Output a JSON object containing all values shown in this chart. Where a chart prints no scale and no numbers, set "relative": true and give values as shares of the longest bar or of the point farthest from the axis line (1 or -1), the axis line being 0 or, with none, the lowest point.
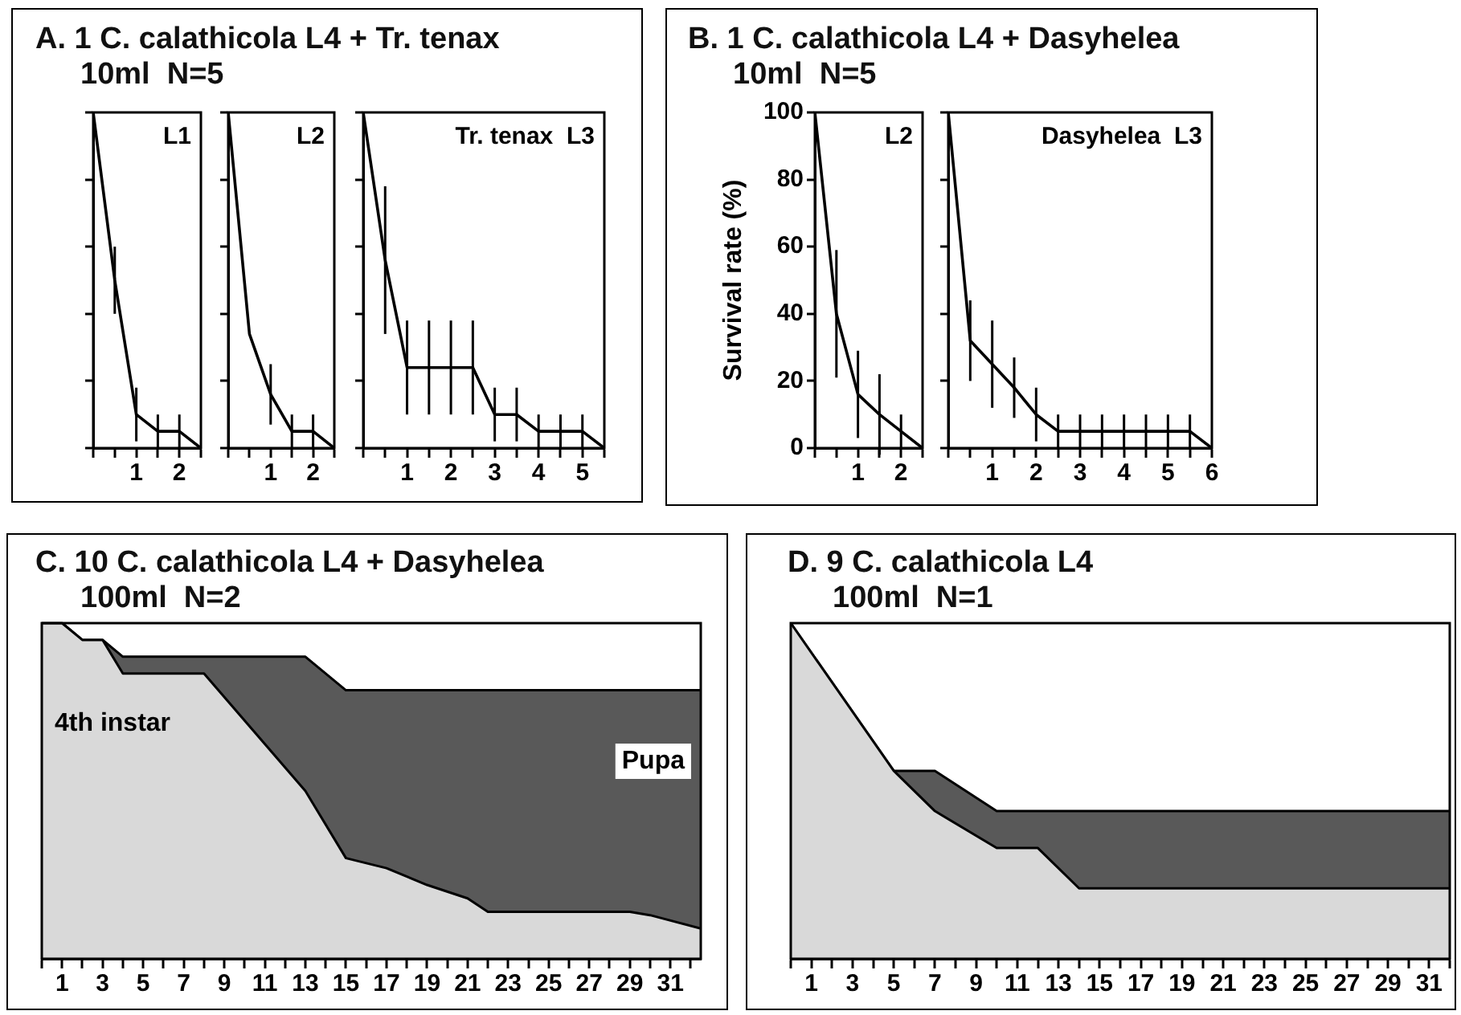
{
  "chart_data": [
    {
      "type": "line",
      "title": "A. 1 C. calathicola L4 + Tr. tenax",
      "subtitle": "10ml  N=5",
      "annotations": [
        "L1"
      ],
      "x": [
        0,
        0.5,
        1,
        1.5,
        2,
        2.5
      ],
      "values": [
        100,
        50,
        10,
        5,
        5,
        0
      ],
      "errors": [
        null,
        10,
        8,
        5,
        5,
        null
      ],
      "color": "#000000",
      "xlim": [
        0,
        2.5
      ],
      "xticks": [
        {
          "value": 0,
          "label": null
        },
        {
          "value": 0.5,
          "label": null
        },
        1,
        {
          "value": 1.5,
          "label": null
        },
        2,
        {
          "value": 2.5,
          "label": null
        }
      ],
      "ylim": [
        0,
        100
      ],
      "yticks": [
        {
          "value": 0,
          "label": null
        },
        {
          "value": 20,
          "label": null
        },
        {
          "value": 40,
          "label": null
        },
        {
          "value": 60,
          "label": null
        },
        {
          "value": 80,
          "label": null
        },
        {
          "value": 100,
          "label": null
        }
      ],
      "tick_labels": "x",
      "marker": "none"
    },
    {
      "type": "line",
      "annotations": [
        "L2"
      ],
      "x": [
        0,
        0.5,
        1,
        1.5,
        2,
        2.5
      ],
      "values": [
        100,
        34,
        16,
        5,
        5,
        0
      ],
      "errors": [
        null,
        null,
        9,
        5,
        5,
        null
      ],
      "color": "#000000",
      "xlim": [
        0,
        2.5
      ],
      "xticks": [
        {
          "value": 0,
          "label": null
        },
        {
          "value": 0.5,
          "label": null
        },
        1,
        {
          "value": 1.5,
          "label": null
        },
        2,
        {
          "value": 2.5,
          "label": null
        }
      ],
      "ylim": [
        0,
        100
      ],
      "yticks": [
        {
          "value": 0,
          "label": null
        },
        {
          "value": 20,
          "label": null
        },
        {
          "value": 40,
          "label": null
        },
        {
          "value": 60,
          "label": null
        },
        {
          "value": 80,
          "label": null
        },
        {
          "value": 100,
          "label": null
        }
      ],
      "tick_labels": "x",
      "marker": "none"
    },
    {
      "type": "line",
      "annotations": [
        "Tr. tenax  L3"
      ],
      "x": [
        0,
        0.5,
        1,
        1.5,
        2,
        2.5,
        3,
        3.5,
        4,
        4.5,
        5,
        5.5
      ],
      "values": [
        100,
        56,
        24,
        24,
        24,
        24,
        10,
        10,
        5,
        5,
        5,
        0
      ],
      "errors": [
        null,
        22,
        14,
        14,
        14,
        14,
        8,
        8,
        5,
        5,
        5,
        null
      ],
      "color": "#000000",
      "xlim": [
        0,
        5.5
      ],
      "xticks": [
        {
          "value": 0,
          "label": null
        },
        {
          "value": 0.5,
          "label": null
        },
        1,
        {
          "value": 1.5,
          "label": null
        },
        2,
        {
          "value": 2.5,
          "label": null
        },
        3,
        {
          "value": 3.5,
          "label": null
        },
        4,
        {
          "value": 4.5,
          "label": null
        },
        5,
        {
          "value": 5.5,
          "label": null
        }
      ],
      "ylim": [
        0,
        100
      ],
      "yticks": [
        {
          "value": 0,
          "label": null
        },
        {
          "value": 20,
          "label": null
        },
        {
          "value": 40,
          "label": null
        },
        {
          "value": 60,
          "label": null
        },
        {
          "value": 80,
          "label": null
        },
        {
          "value": 100,
          "label": null
        }
      ],
      "tick_labels": "x",
      "marker": "none"
    },
    {
      "type": "line",
      "title": "B. 1 C. calathicola L4 + Dasyhelea",
      "subtitle": "10ml  N=5",
      "ylabel": "Survival rate (%)",
      "annotations": [
        "L2"
      ],
      "x": [
        0,
        0.5,
        1,
        1.5,
        2,
        2.5
      ],
      "values": [
        100,
        40,
        16,
        10,
        5,
        0
      ],
      "errors": [
        null,
        19,
        13,
        12,
        5,
        null
      ],
      "color": "#000000",
      "xlim": [
        0,
        2.5
      ],
      "xticks": [
        {
          "value": 0,
          "label": null
        },
        {
          "value": 0.5,
          "label": null
        },
        1,
        {
          "value": 1.5,
          "label": null
        },
        2,
        {
          "value": 2.5,
          "label": null
        }
      ],
      "ylim": [
        0,
        100
      ],
      "yticks": [
        0,
        20,
        40,
        60,
        80,
        100
      ],
      "marker": "none"
    },
    {
      "type": "line",
      "annotations": [
        "Dasyhelea  L3"
      ],
      "x": [
        0,
        0.5,
        1,
        1.5,
        2,
        2.5,
        3,
        3.5,
        4,
        4.5,
        5,
        5.5,
        6
      ],
      "values": [
        100,
        32,
        25,
        18,
        10,
        5,
        5,
        5,
        5,
        5,
        5,
        5,
        0
      ],
      "errors": [
        null,
        12,
        13,
        9,
        8,
        5,
        5,
        5,
        5,
        5,
        5,
        5,
        null
      ],
      "color": "#000000",
      "xlim": [
        0,
        6
      ],
      "xticks": [
        {
          "value": 0,
          "label": null
        },
        {
          "value": 0.5,
          "label": null
        },
        1,
        {
          "value": 1.5,
          "label": null
        },
        2,
        {
          "value": 2.5,
          "label": null
        },
        3,
        {
          "value": 3.5,
          "label": null
        },
        4,
        {
          "value": 4.5,
          "label": null
        },
        5,
        {
          "value": 5.5,
          "label": null
        },
        6
      ],
      "ylim": [
        0,
        100
      ],
      "yticks": [
        {
          "value": 0,
          "label": null
        },
        {
          "value": 20,
          "label": null
        },
        {
          "value": 40,
          "label": null
        },
        {
          "value": 60,
          "label": null
        },
        {
          "value": 80,
          "label": null
        },
        {
          "value": 100,
          "label": null
        }
      ],
      "tick_labels": "x",
      "marker": "none"
    },
    {
      "type": "area",
      "title": "C. 10 C. calathicola L4 + Dasyhelea",
      "subtitle": "100ml  N=2",
      "relative": true,
      "stacked": true,
      "x": [
        0,
        1,
        2,
        3,
        4,
        8,
        9,
        11,
        13,
        15,
        17,
        19,
        21,
        22,
        29,
        30,
        32.5
      ],
      "series": [
        {
          "name": "4th instar",
          "color": "#d9d9d9",
          "values": [
            1,
            1,
            0.95,
            0.95,
            0.85,
            0.85,
            0.78,
            0.64,
            0.5,
            0.3,
            0.27,
            0.22,
            0.18,
            0.14,
            0.14,
            0.13,
            0.09
          ]
        },
        {
          "name": "Pupa",
          "color": "#595959",
          "values": [
            0,
            0,
            0,
            0,
            0.05,
            0.05,
            0.12,
            0.26,
            0.4,
            0.5,
            0.53,
            0.58,
            0.62,
            0.66,
            0.66,
            0.67,
            0.71
          ]
        }
      ],
      "xlim": [
        0,
        32.5
      ],
      "xticks": [
        {
          "value": 0,
          "label": null
        },
        1,
        {
          "value": 2,
          "label": null
        },
        3,
        {
          "value": 4,
          "label": null
        },
        5,
        {
          "value": 6,
          "label": null
        },
        7,
        {
          "value": 8,
          "label": null
        },
        9,
        {
          "value": 10,
          "label": null
        },
        11,
        {
          "value": 12,
          "label": null
        },
        13,
        {
          "value": 14,
          "label": null
        },
        15,
        {
          "value": 16,
          "label": null
        },
        17,
        {
          "value": 18,
          "label": null
        },
        19,
        {
          "value": 20,
          "label": null
        },
        21,
        {
          "value": 22,
          "label": null
        },
        23,
        {
          "value": 24,
          "label": null
        },
        25,
        {
          "value": 26,
          "label": null
        },
        27,
        {
          "value": 28,
          "label": null
        },
        29,
        {
          "value": 30,
          "label": null
        },
        31,
        {
          "value": 32,
          "label": null
        }
      ]
    },
    {
      "type": "area",
      "title": "D. 9 C. calathicola L4",
      "subtitle": "100ml  N=1",
      "relative": true,
      "stacked": true,
      "x": [
        0,
        5,
        7,
        10,
        12,
        14,
        32
      ],
      "series": [
        {
          "color": "#d9d9d9",
          "values": [
            1,
            0.56,
            0.44,
            0.33,
            0.33,
            0.21,
            0.21
          ]
        },
        {
          "color": "#595959",
          "values": [
            0,
            0,
            0.12,
            0.11,
            0.11,
            0.23,
            0.23
          ]
        }
      ],
      "xlim": [
        0,
        32
      ],
      "xticks": [
        {
          "value": 0,
          "label": null
        },
        1,
        {
          "value": 2,
          "label": null
        },
        3,
        {
          "value": 4,
          "label": null
        },
        5,
        {
          "value": 6,
          "label": null
        },
        7,
        {
          "value": 8,
          "label": null
        },
        9,
        {
          "value": 10,
          "label": null
        },
        11,
        {
          "value": 12,
          "label": null
        },
        13,
        {
          "value": 14,
          "label": null
        },
        15,
        {
          "value": 16,
          "label": null
        },
        17,
        {
          "value": 18,
          "label": null
        },
        19,
        {
          "value": 20,
          "label": null
        },
        21,
        {
          "value": 22,
          "label": null
        },
        23,
        {
          "value": 24,
          "label": null
        },
        25,
        {
          "value": 26,
          "label": null
        },
        27,
        {
          "value": 28,
          "label": null
        },
        29,
        {
          "value": 30,
          "label": null
        },
        31,
        {
          "value": 32,
          "label": null
        }
      ]
    }
  ]
}
